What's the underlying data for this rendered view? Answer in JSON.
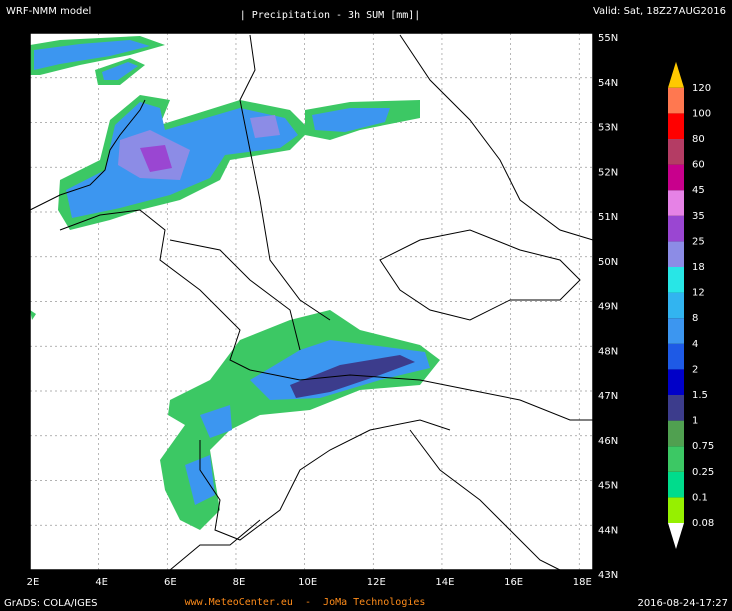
{
  "header": {
    "model": "WRF-NMM model",
    "title": "| Precipitation - 3h SUM [mm]|",
    "valid": "Valid: Sat, 18Z27AUG2016"
  },
  "map": {
    "lon_range": [
      2,
      18.4
    ],
    "lat_range": [
      43,
      55
    ],
    "lon_ticks": [
      {
        "value": 2,
        "label": "2E"
      },
      {
        "value": 4,
        "label": "4E"
      },
      {
        "value": 6,
        "label": "6E"
      },
      {
        "value": 8,
        "label": "8E"
      },
      {
        "value": 10,
        "label": "10E"
      },
      {
        "value": 12,
        "label": "12E"
      },
      {
        "value": 14,
        "label": "14E"
      },
      {
        "value": 16,
        "label": "16E"
      },
      {
        "value": 18,
        "label": "18E"
      }
    ],
    "lat_ticks": [
      {
        "value": 43,
        "label": "43N"
      },
      {
        "value": 44,
        "label": "44N"
      },
      {
        "value": 45,
        "label": "45N"
      },
      {
        "value": 46,
        "label": "46N"
      },
      {
        "value": 47,
        "label": "47N"
      },
      {
        "value": 48,
        "label": "48N"
      },
      {
        "value": 49,
        "label": "49N"
      },
      {
        "value": 50,
        "label": "50N"
      },
      {
        "value": 51,
        "label": "51N"
      },
      {
        "value": 52,
        "label": "52N"
      },
      {
        "value": 53,
        "label": "53N"
      },
      {
        "value": 54,
        "label": "54N"
      },
      {
        "value": 55,
        "label": "55N"
      }
    ],
    "grid": true
  },
  "colorbar": {
    "levels": [
      0.08,
      0.1,
      0.25,
      0.75,
      1,
      1.5,
      2,
      4,
      8,
      12,
      18,
      25,
      35,
      45,
      60,
      80,
      100,
      120
    ],
    "colors": [
      "#96f000",
      "#00dc8c",
      "#3cc864",
      "#50a050",
      "#3c3c8c",
      "#0000c8",
      "#1e5ae6",
      "#3c96f0",
      "#32b4f0",
      "#28e6e6",
      "#8c8ce6",
      "#9a46d2",
      "#e682e6",
      "#c8008c",
      "#b43c64",
      "#ff0000",
      "#ff7850"
    ],
    "below_color": "#ffffff",
    "above_color": "#ffc800"
  },
  "footer": {
    "software": "GrADS: COLA/IGES",
    "site": "www.MeteoCenter.eu  -  JoMa Technologies",
    "timestamp": "2016-08-24-17:27"
  }
}
